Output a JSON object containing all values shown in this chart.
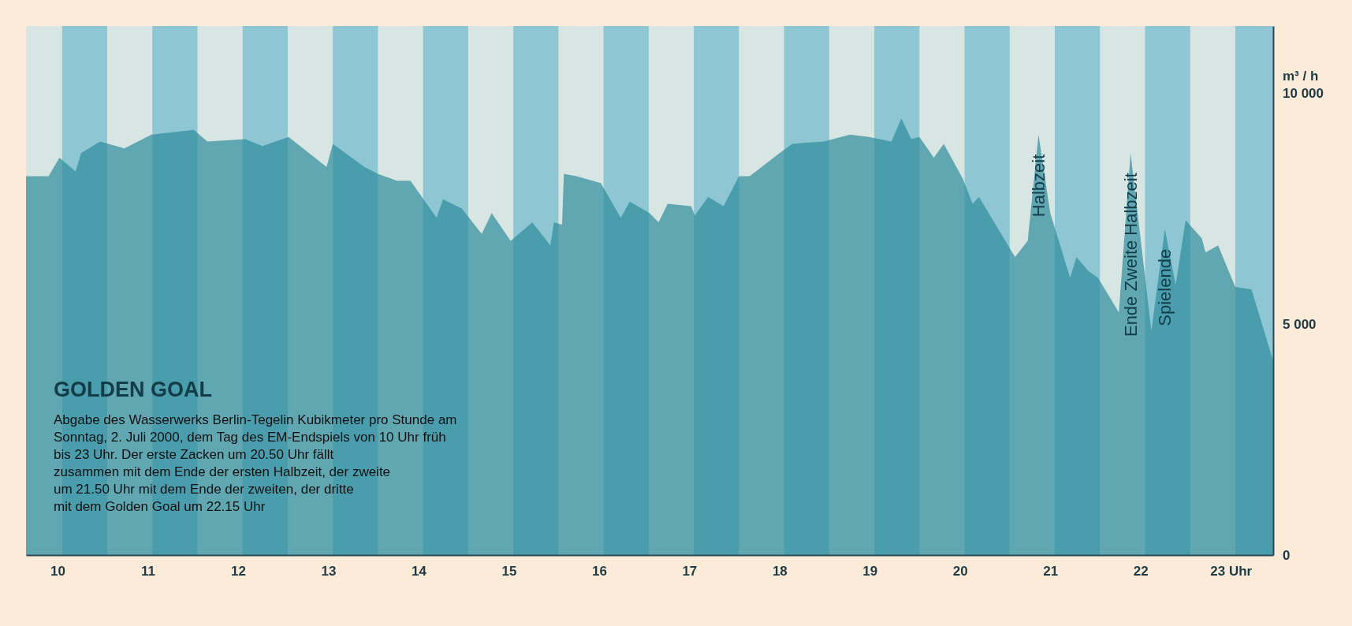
{
  "chart_data": {
    "type": "area",
    "title": "GOLDEN GOAL",
    "subtitle": "Abgabe des Wasserwerks Berlin-Tegelin Kubikmeter pro Stunde am\nSonntag, 2. Juli 2000, dem Tag des EM-Endspiels von 10 Uhr früh\nbis 23 Uhr. Der erste Zacken um 20.50 Uhr fällt\nzusammen mit dem Ende der ersten Halbzeit, der zweite\num 21.50 Uhr mit dem Ende der zweiten, der dritte\nmit dem Golden Goal um 22.15 Uhr",
    "ylabel": "m³ / h",
    "color": "#2e8c9c",
    "x": [
      9.65,
      9.9,
      10.02,
      10.2,
      10.26,
      10.47,
      10.74,
      11.04,
      11.51,
      11.66,
      12.08,
      12.27,
      12.56,
      12.98,
      13.05,
      13.4,
      13.55,
      13.76,
      13.91,
      14.2,
      14.27,
      14.48,
      14.7,
      14.81,
      15.02,
      15.26,
      15.46,
      15.5,
      15.59,
      15.61,
      15.75,
      16.02,
      16.24,
      16.34,
      16.56,
      16.66,
      16.76,
      17.02,
      17.06,
      17.21,
      17.38,
      17.55,
      17.67,
      18.0,
      18.14,
      18.49,
      18.78,
      18.99,
      19.24,
      19.35,
      19.46,
      19.55,
      19.71,
      19.82,
      20.03,
      20.14,
      20.21,
      20.61,
      20.75,
      20.87,
      21.0,
      21.22,
      21.29,
      21.42,
      21.53,
      21.76,
      21.89,
      22.12,
      22.27,
      22.39,
      22.5,
      22.68,
      22.72,
      22.86,
      23.05,
      23.23,
      23.47
    ],
    "values": [
      8200,
      8200,
      8600,
      8300,
      8700,
      8950,
      8800,
      9100,
      9200,
      8950,
      9000,
      8850,
      9050,
      8400,
      8900,
      8400,
      8250,
      8100,
      8100,
      7300,
      7700,
      7500,
      6950,
      7400,
      6800,
      7200,
      6700,
      7200,
      7150,
      8250,
      8200,
      8050,
      7300,
      7650,
      7400,
      7200,
      7600,
      7550,
      7350,
      7750,
      7550,
      8200,
      8200,
      8700,
      8900,
      8950,
      9100,
      9050,
      8950,
      9450,
      9000,
      9050,
      8600,
      8900,
      8150,
      7600,
      7750,
      6450,
      6800,
      9100,
      7400,
      6000,
      6450,
      6150,
      6000,
      5250,
      8700,
      4850,
      7050,
      5850,
      7250,
      6850,
      6550,
      6700,
      5800,
      5750,
      4200
    ],
    "xlim": [
      9.65,
      23.47
    ],
    "xticks": [
      10,
      11,
      12,
      13,
      14,
      15,
      16,
      17,
      18,
      19,
      20,
      21,
      22,
      {
        "value": 23,
        "label": "23 Uhr"
      }
    ],
    "ylim": [
      0,
      11450
    ],
    "yticks": [
      0,
      {
        "value": 5000,
        "label": "5 000"
      },
      {
        "value": 10000,
        "label": "10 000"
      }
    ],
    "bands": [
      {
        "axis": "x",
        "from": 10.05,
        "to": 10.55,
        "color": "#8ec7d3"
      },
      {
        "axis": "x",
        "from": 11.05,
        "to": 11.55,
        "color": "#8ec7d3"
      },
      {
        "axis": "x",
        "from": 12.05,
        "to": 12.55,
        "color": "#8ec7d3"
      },
      {
        "axis": "x",
        "from": 13.05,
        "to": 13.55,
        "color": "#8ec7d3"
      },
      {
        "axis": "x",
        "from": 14.05,
        "to": 14.55,
        "color": "#8ec7d3"
      },
      {
        "axis": "x",
        "from": 15.05,
        "to": 15.55,
        "color": "#8ec7d3"
      },
      {
        "axis": "x",
        "from": 16.05,
        "to": 16.55,
        "color": "#8ec7d3"
      },
      {
        "axis": "x",
        "from": 17.05,
        "to": 17.55,
        "color": "#8ec7d3"
      },
      {
        "axis": "x",
        "from": 18.05,
        "to": 18.55,
        "color": "#8ec7d3"
      },
      {
        "axis": "x",
        "from": 19.05,
        "to": 19.55,
        "color": "#8ec7d3"
      },
      {
        "axis": "x",
        "from": 20.05,
        "to": 20.55,
        "color": "#8ec7d3"
      },
      {
        "axis": "x",
        "from": 21.05,
        "to": 21.55,
        "color": "#8ec7d3"
      },
      {
        "axis": "x",
        "from": 22.05,
        "to": 22.55,
        "color": "#8ec7d3"
      },
      {
        "axis": "x",
        "from": 23.05,
        "to": 23.47,
        "color": "#8ec7d3"
      }
    ],
    "annotations": [
      {
        "text": "Halbzeit",
        "x": 20.87,
        "y": 9100
      },
      {
        "text": "Ende Zweite Halbzeit",
        "x": 21.89,
        "y": 8700
      },
      {
        "text": "Spielende",
        "x": 22.27,
        "y": 7050
      }
    ]
  }
}
